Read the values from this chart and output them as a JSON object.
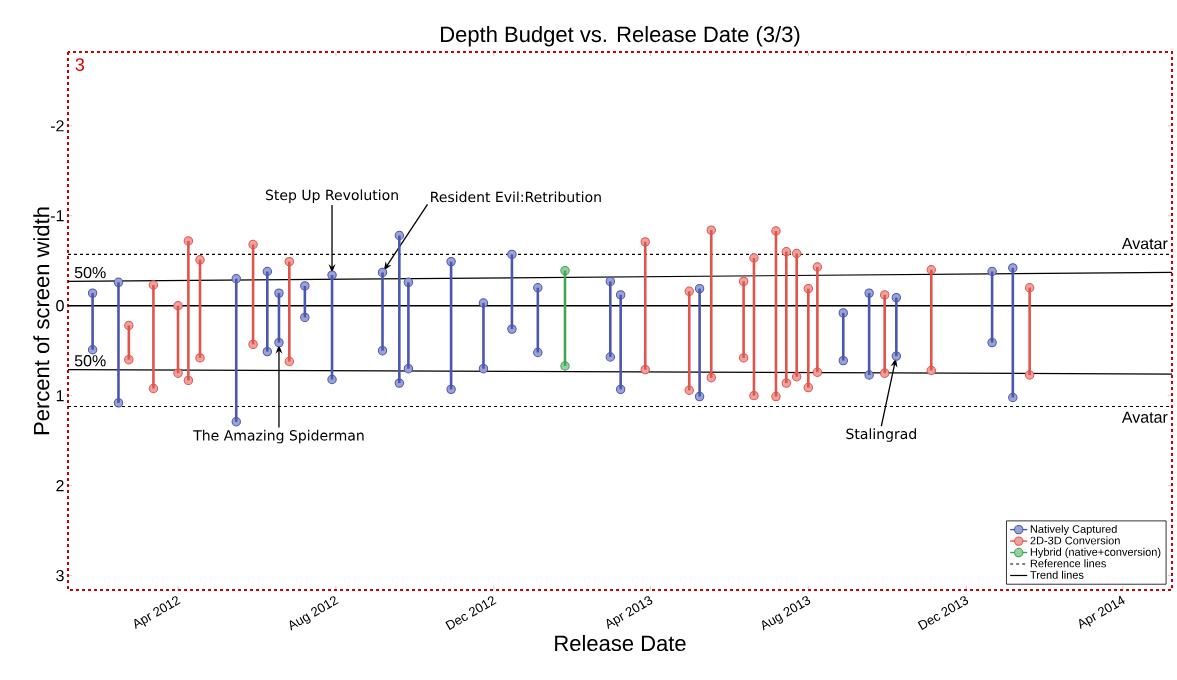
{
  "chart_data": {
    "type": "bar",
    "title": "Depth Budget vs. Release Date (3/3)",
    "xlabel": "Release Date",
    "ylabel": "Percent of screen width",
    "xlim": [
      "2012-01-07",
      "2014-05-09"
    ],
    "ylim": [
      3.16,
      -2.82
    ],
    "yticks": [
      -2,
      -1,
      0,
      1,
      2,
      3
    ],
    "xticks": [
      {
        "value": "2012-04-01",
        "label": "Apr 2012"
      },
      {
        "value": "2012-08-01",
        "label": "Aug 2012"
      },
      {
        "value": "2012-12-01",
        "label": "Dec 2012"
      },
      {
        "value": "2013-04-01",
        "label": "Apr 2013"
      },
      {
        "value": "2013-08-01",
        "label": "Aug 2013"
      },
      {
        "value": "2013-12-01",
        "label": "Dec 2013"
      },
      {
        "value": "2014-04-01",
        "label": "Apr 2014"
      }
    ],
    "marker": "circle",
    "legend": "bottom right",
    "grid": false,
    "series": [
      {
        "name": "Natively Captured",
        "color": "#4a56b0",
        "x": [
          "2012-01-26",
          "2012-02-15",
          "2012-05-16",
          "2012-06-09",
          "2012-06-18",
          "2012-07-08",
          "2012-07-29",
          "2012-09-06",
          "2012-09-19",
          "2012-09-26",
          "2012-10-29",
          "2012-11-23",
          "2012-12-15",
          "2013-01-04",
          "2013-03-01",
          "2013-03-09",
          "2013-05-09",
          "2013-08-28",
          "2013-09-17",
          "2013-10-08",
          "2013-12-21",
          "2014-01-06"
        ],
        "base": [
          -0.14,
          -0.26,
          -0.3,
          -0.38,
          -0.14,
          -0.22,
          -0.34,
          -0.37,
          -0.78,
          -0.26,
          -0.49,
          -0.03,
          -0.57,
          -0.2,
          -0.27,
          -0.12,
          -0.19,
          0.08,
          -0.14,
          -0.09,
          -0.38,
          -0.42
        ],
        "values": [
          0.63,
          1.34,
          1.59,
          0.89,
          0.55,
          0.35,
          1.16,
          0.87,
          1.64,
          0.96,
          1.42,
          0.73,
          0.83,
          0.72,
          0.84,
          1.05,
          1.2,
          0.53,
          0.91,
          0.65,
          0.79,
          1.44
        ]
      },
      {
        "name": "2D-3D Conversion",
        "color": "#e0544c",
        "x": [
          "2012-02-23",
          "2012-03-13",
          "2012-04-01",
          "2012-04-09",
          "2012-04-18",
          "2012-05-29",
          "2012-06-26",
          "2013-03-28",
          "2013-05-01",
          "2013-05-18",
          "2013-06-12",
          "2013-06-20",
          "2013-07-07",
          "2013-07-15",
          "2013-07-23",
          "2013-08-01",
          "2013-08-08",
          "2013-09-29",
          "2013-11-04",
          "2014-01-19"
        ],
        "base": [
          0.22,
          -0.23,
          0.0,
          -0.72,
          -0.51,
          -0.68,
          -0.49,
          -0.71,
          -0.16,
          -0.84,
          -0.27,
          -0.53,
          -0.83,
          -0.6,
          -0.58,
          -0.19,
          -0.43,
          -0.12,
          -0.4,
          -0.2
        ],
        "values": [
          0.38,
          1.15,
          0.75,
          1.55,
          1.09,
          1.11,
          1.11,
          1.42,
          1.1,
          1.64,
          0.85,
          1.53,
          1.84,
          1.46,
          1.37,
          1.1,
          1.17,
          0.87,
          1.12,
          0.97
        ]
      },
      {
        "name": "Hybrid (native+conversion)",
        "color": "#3fa656",
        "x": [
          "2013-01-25"
        ],
        "base": [
          -0.39
        ],
        "values": [
          1.06
        ]
      },
      {
        "name": "Reference lines",
        "type": "line",
        "marker": "none",
        "line_style": "dashed",
        "color": "#000000",
        "x": [
          "2012-01-07",
          "2014-05-09"
        ],
        "values": [
          -0.57,
          -0.57
        ]
      },
      {
        "type": "line",
        "marker": "none",
        "line_style": "dashed",
        "color": "#000000",
        "x": [
          "2012-01-07",
          "2014-05-09"
        ],
        "values": [
          1.12,
          1.12
        ]
      },
      {
        "name": "Trend lines",
        "type": "line",
        "marker": "none",
        "color": "#000000",
        "x": [
          "2012-01-07",
          "2014-05-09"
        ],
        "values": [
          -0.27,
          -0.37
        ]
      },
      {
        "type": "line",
        "marker": "none",
        "color": "#000000",
        "x": [
          "2012-01-07",
          "2014-05-09"
        ],
        "values": [
          0.71,
          0.76
        ]
      }
    ],
    "ref_lines": [
      {
        "axis": "y",
        "value": 0,
        "color": "#000000"
      }
    ],
    "annotations": [
      "3",
      {
        "text": "50%",
        "x": "2012-01-07",
        "y": -0.27
      },
      {
        "text": "50%",
        "x": "2012-01-07",
        "y": 0.71
      },
      {
        "text": "Step Up Revolution",
        "x": "2012-07-29",
        "y": -0.34
      },
      {
        "text": "Resident Evil:Retribution",
        "x": "2012-09-06",
        "y": -0.37
      },
      {
        "text": "The Amazing Spiderman",
        "x": "2012-06-18",
        "y": 0.41
      },
      {
        "text": "Stalingrad",
        "x": "2013-10-08",
        "y": 0.56
      },
      {
        "text": "Avatar",
        "x": "2014-05-09",
        "y": -0.57
      },
      {
        "text": "Avatar",
        "x": "2014-05-09",
        "y": 1.12
      }
    ]
  }
}
